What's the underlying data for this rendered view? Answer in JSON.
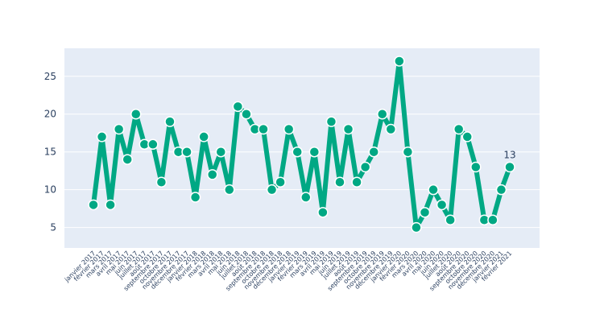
{
  "colors": {
    "plot_bg": "#e5ecf6",
    "grid": "#ffffff",
    "line": "#00a884",
    "marker_edge": "#ffffff",
    "text": "#2a3f5f"
  },
  "chart_data": {
    "type": "line",
    "title": "",
    "xlabel": "",
    "ylabel": "",
    "ylim": [
      2.3,
      28.7
    ],
    "yticks": [
      5,
      10,
      15,
      20,
      25
    ],
    "grid": true,
    "categories": [
      "janvier 2017",
      "février 2017",
      "mars 2017",
      "avril 2017",
      "mai 2017",
      "juin 2017",
      "juillet 2017",
      "août 2017",
      "septembre 2017",
      "octobre 2017",
      "novembre 2017",
      "décembre 2017",
      "janvier 2018",
      "février 2018",
      "mars 2018",
      "avril 2018",
      "mai 2018",
      "juin 2018",
      "juillet 2018",
      "août 2018",
      "septembre 2018",
      "octobre 2018",
      "novembre 2018",
      "décembre 2018",
      "janvier 2019",
      "février 2019",
      "mars 2019",
      "avril 2019",
      "mai 2019",
      "juin 2019",
      "juillet 2019",
      "août 2019",
      "septembre 2019",
      "octobre 2019",
      "novembre 2019",
      "décembre 2019",
      "janvier 2020",
      "février 2020",
      "mars 2020",
      "avril 2020",
      "mai 2020",
      "juin 2020",
      "juillet 2020",
      "août 2020",
      "septembre 2020",
      "octobre 2020",
      "novembre 2020",
      "décembre 2020",
      "janvier 2021",
      "février 2021"
    ],
    "series": [
      {
        "values": [
          8,
          17,
          8,
          18,
          14,
          20,
          16,
          16,
          11,
          19,
          15,
          15,
          9,
          17,
          12,
          15,
          10,
          21,
          20,
          18,
          18,
          10,
          11,
          18,
          15,
          9,
          15,
          7,
          19,
          11,
          18,
          11,
          13,
          15,
          20,
          18,
          27,
          15,
          5,
          7,
          10,
          8,
          6,
          18,
          17,
          13,
          6,
          6,
          10,
          13
        ]
      }
    ],
    "last_point_label": "13"
  }
}
